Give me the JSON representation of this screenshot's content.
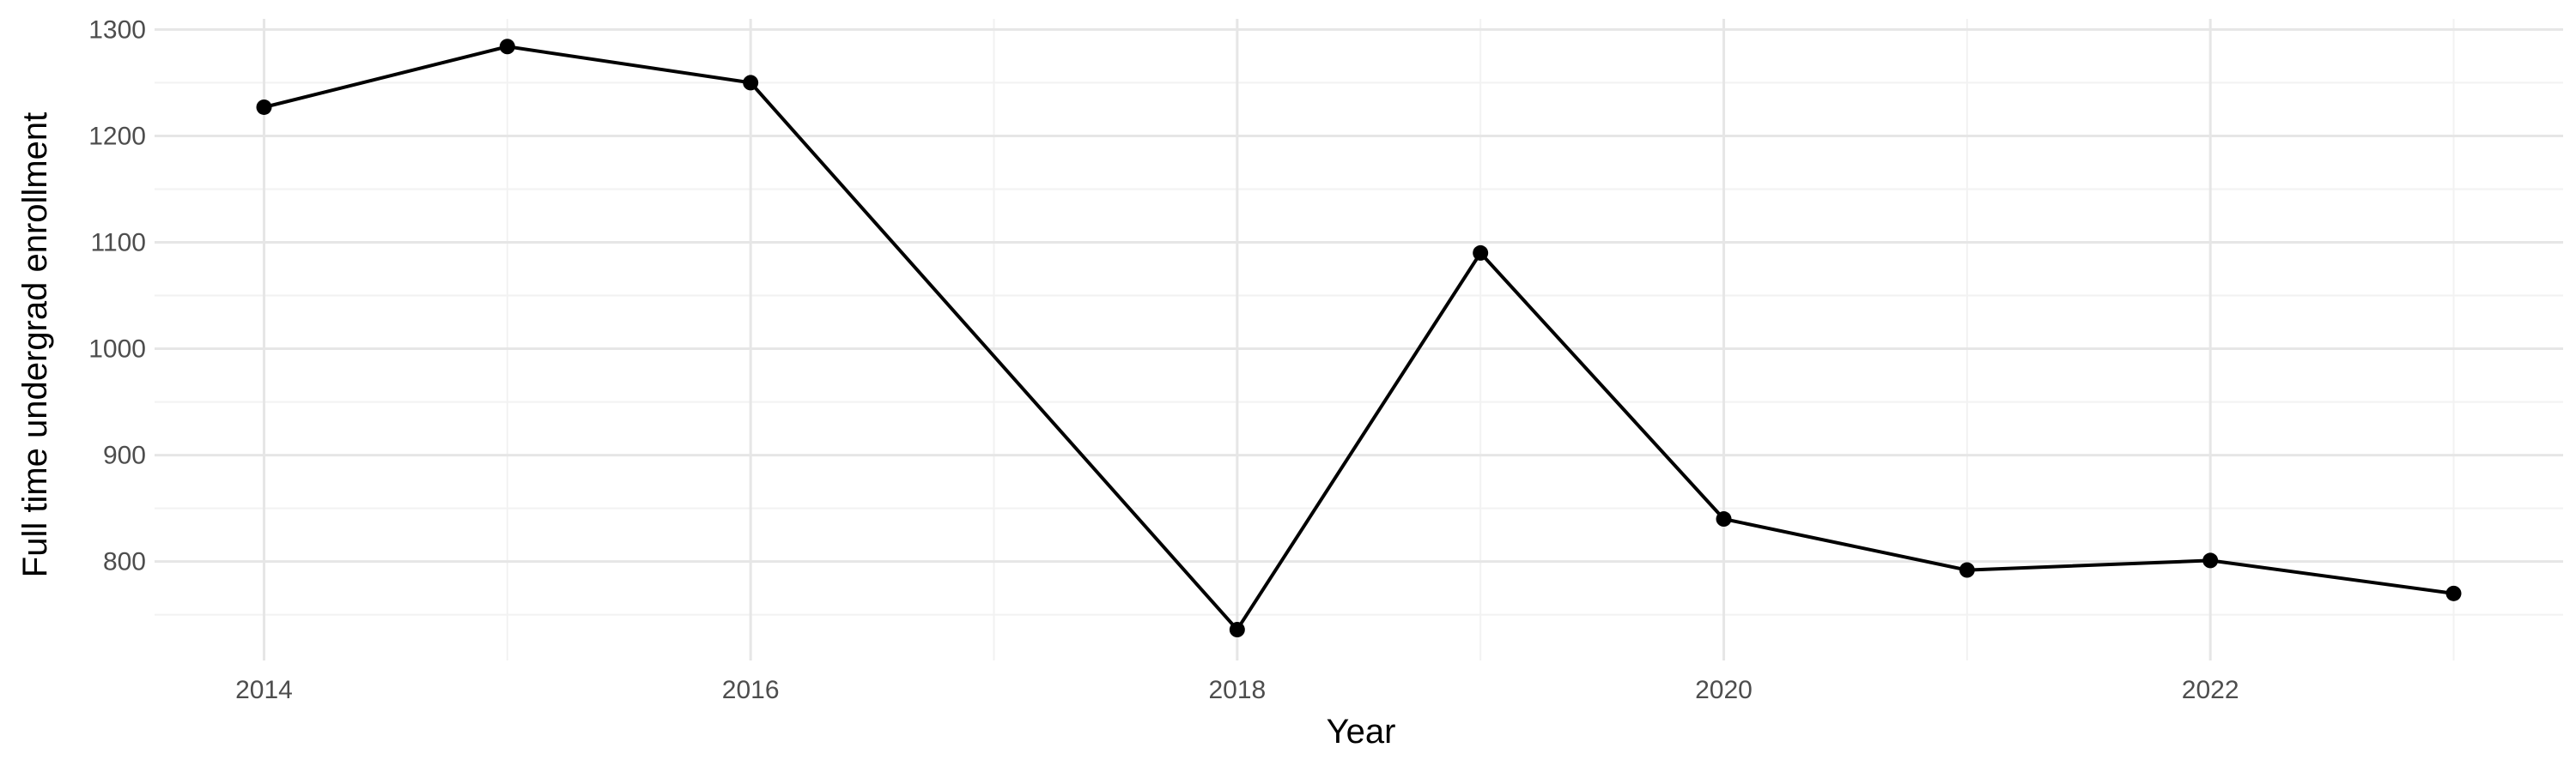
{
  "chart_data": {
    "type": "line",
    "title": "",
    "xlabel": "Year",
    "ylabel": "Full time undergrad enrollment",
    "x": [
      2014,
      2015,
      2016,
      2018,
      2019,
      2020,
      2021,
      2022,
      2023
    ],
    "series": [
      {
        "values": [
          1227,
          1284,
          1250,
          736,
          1090,
          840,
          792,
          801,
          770
        ]
      }
    ],
    "xlim": [
      2013.55,
      2023.45
    ],
    "ylim": [
      707,
      1310
    ],
    "x_ticks": [
      2014,
      2016,
      2018,
      2020,
      2022
    ],
    "x_tick_labels": [
      "2014",
      "2016",
      "2018",
      "2020",
      "2022"
    ],
    "y_ticks": [
      800,
      900,
      1000,
      1100,
      1200,
      1300
    ],
    "y_tick_labels": [
      "800",
      "900",
      "1000",
      "1100",
      "1200",
      "1300"
    ],
    "grid": true,
    "legend": "none",
    "line_color": "#000000",
    "grid_color": "#e6e6e6"
  }
}
